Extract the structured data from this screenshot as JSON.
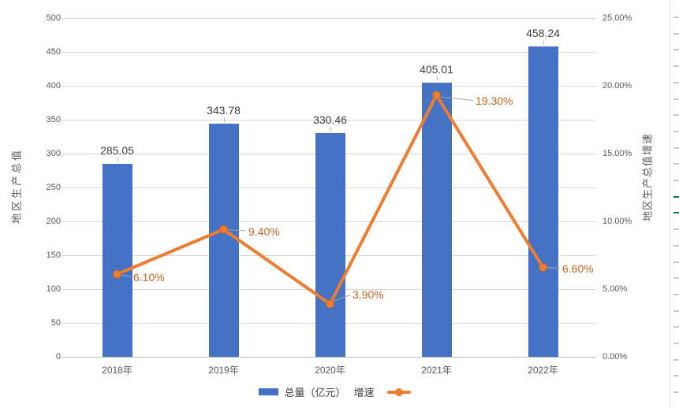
{
  "chart_data": {
    "type": "combo",
    "title": "",
    "categories": [
      "2018年",
      "2019年",
      "2020年",
      "2021年",
      "2022年"
    ],
    "series": [
      {
        "name": "总量（亿元）",
        "type": "bar",
        "axis": "left",
        "color": "#4472C4",
        "values": [
          285.05,
          343.78,
          330.46,
          405.01,
          458.24
        ],
        "data_labels": [
          "285.05",
          "343.78",
          "330.46",
          "405.01",
          "458.24"
        ]
      },
      {
        "name": "增速",
        "type": "line",
        "axis": "right",
        "color": "#ED7D31",
        "values": [
          6.1,
          9.4,
          3.9,
          19.3,
          6.6
        ],
        "data_labels": [
          "6.10%",
          "9.40%",
          "3.90%",
          "19.30%",
          "6.60%"
        ]
      }
    ],
    "left_axis": {
      "title": "地区生产总值",
      "min": 0,
      "max": 500,
      "step": 50,
      "tick_labels": [
        "0",
        "50",
        "100",
        "150",
        "200",
        "250",
        "300",
        "350",
        "400",
        "450",
        "500"
      ]
    },
    "right_axis": {
      "title": "地区生产总值增速",
      "min": 0,
      "max": 25,
      "step": 5,
      "tick_labels": [
        "0.00%",
        "5.00%",
        "10.00%",
        "15.00%",
        "20.00%",
        "25.00%"
      ]
    },
    "grid": true,
    "legend_position": "bottom-center"
  },
  "legend": {
    "items": [
      {
        "label": "总量（亿元）",
        "swatch": "bar",
        "color": "#4472C4"
      },
      {
        "label": "增速",
        "swatch": "line-marker",
        "color": "#ED7D31"
      }
    ]
  },
  "colors": {
    "bar": "#4472C4",
    "line": "#ED7D31",
    "pct_label": "#C8641F",
    "value_label": "#404040",
    "axis_text": "#595959",
    "gridline": "#D9D9D9",
    "axis_line": "#BFBFBF",
    "leader_line": "#A6A6A6",
    "sheet_edge_green": "#217346"
  }
}
